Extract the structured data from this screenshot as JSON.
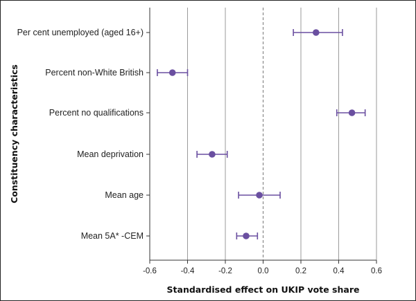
{
  "chart_data": {
    "type": "scatter",
    "subtype": "forest-plot",
    "xlabel": "Standardised effect on UKIP vote share",
    "ylabel": "Constituency characteristics",
    "xlim": [
      -0.6,
      0.6
    ],
    "xticks": [
      "-0.6",
      "-0.4",
      "-0.2",
      "0.0",
      "0.2",
      "0.4",
      "0.6"
    ],
    "xtick_values": [
      -0.6,
      -0.4,
      -0.2,
      0.0,
      0.2,
      0.4,
      0.6
    ],
    "grid": "vertical",
    "reference_line": 0.0,
    "categories": [
      "Per cent unemployed (aged 16+)",
      "Percent non-White British",
      "Percent no qualifications",
      "Mean deprivation",
      "Mean age",
      "Mean 5A* -CEM"
    ],
    "series": [
      {
        "values": [
          0.28,
          -0.48,
          0.47,
          -0.27,
          -0.02,
          -0.09
        ],
        "ci_low": [
          0.16,
          -0.56,
          0.39,
          -0.35,
          -0.13,
          -0.14
        ],
        "ci_high": [
          0.42,
          -0.4,
          0.54,
          -0.19,
          0.09,
          -0.03
        ]
      }
    ],
    "colors": {
      "marker": "#6a4fa0",
      "grid": "#9a9a9a",
      "axis": "#333333"
    }
  }
}
